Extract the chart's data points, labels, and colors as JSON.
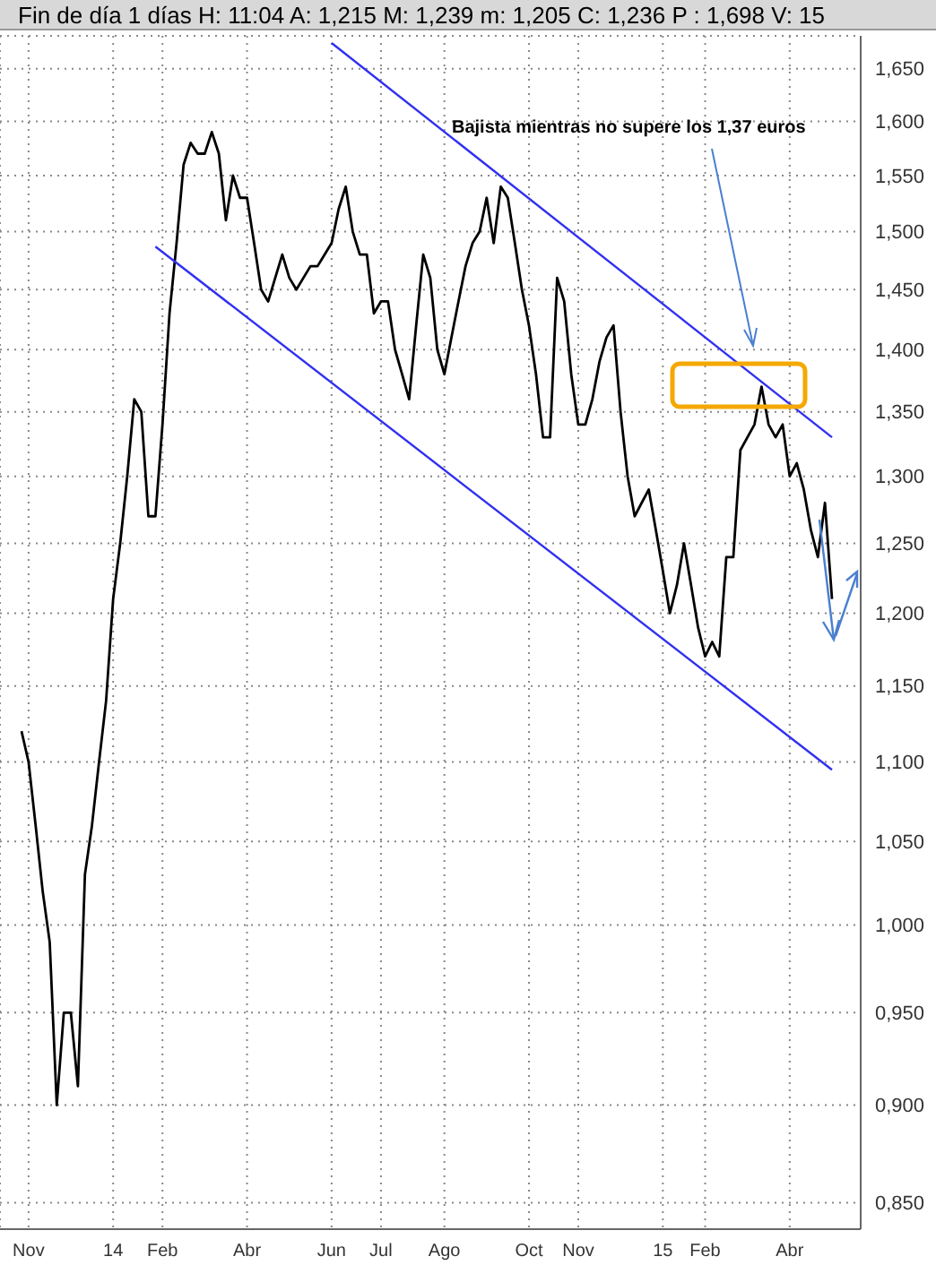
{
  "chart_data": {
    "type": "line",
    "title": "Fin de día 1 días H: 11:04 A: 1,215 M: 1,239 m: 1,205 C: 1,236 P : 1,698 V: 15",
    "categories": [
      null,
      "Nov",
      null,
      null,
      null,
      null,
      null,
      null,
      null,
      null,
      null,
      null,
      null,
      "14",
      null,
      null,
      null,
      null,
      null,
      null,
      "Feb",
      null,
      null,
      null,
      null,
      null,
      null,
      null,
      null,
      null,
      null,
      null,
      "Abr",
      null,
      null,
      null,
      null,
      null,
      null,
      null,
      null,
      null,
      null,
      null,
      "Jun",
      null,
      null,
      null,
      null,
      null,
      null,
      "Jul",
      null,
      null,
      null,
      null,
      null,
      null,
      null,
      null,
      "Ago",
      null,
      null,
      null,
      null,
      null,
      null,
      null,
      null,
      null,
      null,
      null,
      "Oct",
      null,
      null,
      null,
      null,
      null,
      null,
      "Nov",
      null,
      null,
      null,
      null,
      null,
      null,
      null,
      null,
      null,
      null,
      null,
      "15",
      null,
      null,
      null,
      null,
      null,
      "Feb",
      null,
      null,
      null,
      null,
      null,
      null,
      null,
      null,
      null,
      null,
      null,
      "Abr",
      null,
      null,
      null,
      null,
      null,
      null
    ],
    "series": [
      {
        "color": "#000000",
        "values": [
          1.12,
          1.1,
          1.06,
          1.02,
          0.99,
          0.9,
          0.95,
          0.95,
          0.91,
          1.03,
          1.06,
          1.1,
          1.14,
          1.21,
          1.25,
          1.3,
          1.36,
          1.35,
          1.27,
          1.27,
          1.34,
          1.43,
          1.49,
          1.56,
          1.58,
          1.57,
          1.57,
          1.59,
          1.57,
          1.51,
          1.55,
          1.53,
          1.53,
          1.49,
          1.45,
          1.44,
          1.46,
          1.48,
          1.46,
          1.45,
          1.46,
          1.47,
          1.47,
          1.48,
          1.49,
          1.52,
          1.54,
          1.5,
          1.48,
          1.48,
          1.43,
          1.44,
          1.44,
          1.4,
          1.38,
          1.36,
          1.42,
          1.48,
          1.46,
          1.4,
          1.38,
          1.41,
          1.44,
          1.47,
          1.49,
          1.5,
          1.53,
          1.49,
          1.54,
          1.53,
          1.49,
          1.45,
          1.42,
          1.38,
          1.33,
          1.33,
          1.46,
          1.44,
          1.38,
          1.34,
          1.34,
          1.36,
          1.39,
          1.41,
          1.42,
          1.35,
          1.3,
          1.27,
          1.28,
          1.29,
          1.26,
          1.23,
          1.2,
          1.22,
          1.25,
          1.22,
          1.19,
          1.17,
          1.18,
          1.17,
          1.24,
          1.24,
          1.32,
          1.33,
          1.34,
          1.37,
          1.34,
          1.33,
          1.34,
          1.3,
          1.31,
          1.29,
          1.26,
          1.24,
          1.28,
          1.21
        ]
      },
      {
        "color": "#3030f0",
        "values": [
          null,
          null,
          null,
          null,
          null,
          null,
          null,
          null,
          null,
          null,
          null,
          null,
          null,
          null,
          null,
          null,
          null,
          null,
          null,
          null,
          null,
          null,
          null,
          null,
          null,
          null,
          null,
          null,
          null,
          null,
          null,
          null,
          null,
          null,
          null,
          null,
          null,
          null,
          null,
          null,
          null,
          null,
          null,
          null,
          1.675,
          null,
          null,
          null,
          null,
          null,
          null,
          null,
          null,
          null,
          null,
          null,
          null,
          null,
          null,
          null,
          null,
          null,
          null,
          null,
          null,
          null,
          null,
          null,
          null,
          null,
          null,
          null,
          null,
          null,
          null,
          null,
          null,
          null,
          null,
          null,
          null,
          null,
          null,
          null,
          null,
          null,
          null,
          null,
          null,
          null,
          null,
          null,
          null,
          null,
          null,
          null,
          null,
          null,
          null,
          null,
          null,
          null,
          null,
          null,
          null,
          null,
          null,
          null,
          null,
          null,
          null,
          null,
          null,
          null,
          null,
          1.33
        ]
      },
      {
        "color": "#3030f0",
        "values": [
          null,
          null,
          null,
          null,
          null,
          null,
          null,
          null,
          null,
          null,
          null,
          null,
          null,
          null,
          null,
          null,
          null,
          null,
          null,
          1.487,
          null,
          null,
          null,
          null,
          null,
          null,
          null,
          null,
          null,
          null,
          null,
          null,
          null,
          null,
          null,
          null,
          null,
          null,
          null,
          null,
          null,
          null,
          null,
          null,
          null,
          null,
          null,
          null,
          null,
          null,
          null,
          null,
          null,
          null,
          null,
          null,
          null,
          null,
          null,
          null,
          null,
          null,
          null,
          null,
          null,
          null,
          null,
          null,
          null,
          null,
          null,
          null,
          null,
          null,
          null,
          null,
          null,
          null,
          null,
          null,
          null,
          null,
          null,
          null,
          null,
          null,
          null,
          null,
          null,
          null,
          null,
          null,
          null,
          null,
          null,
          null,
          null,
          null,
          null,
          null,
          null,
          null,
          null,
          null,
          null,
          null,
          null,
          null,
          null,
          null,
          null,
          null,
          null,
          null,
          null,
          1.095
        ]
      }
    ],
    "log": true,
    "grid": true,
    "ylim": [
      0.837,
      1.682
    ],
    "yticks": [
      {
        "value": 0.85,
        "label": "0,850"
      },
      {
        "value": 0.9,
        "label": "0,900"
      },
      {
        "value": 0.95,
        "label": "0,950"
      },
      {
        "value": 1.0,
        "label": "1,000"
      },
      {
        "value": 1.05,
        "label": "1,050"
      },
      {
        "value": 1.1,
        "label": "1,100"
      },
      {
        "value": 1.15,
        "label": "1,150"
      },
      {
        "value": 1.2,
        "label": "1,200"
      },
      {
        "value": 1.25,
        "label": "1,250"
      },
      {
        "value": 1.3,
        "label": "1,300"
      },
      {
        "value": 1.35,
        "label": "1,350"
      },
      {
        "value": 1.4,
        "label": "1,400"
      },
      {
        "value": 1.45,
        "label": "1,450"
      },
      {
        "value": 1.5,
        "label": "1,500"
      },
      {
        "value": 1.55,
        "label": "1,550"
      },
      {
        "value": 1.6,
        "label": "1,600"
      },
      {
        "value": 1.65,
        "label": "1,650"
      }
    ],
    "annotations": [
      "Bajista mientras no supere los 1,37 euros"
    ]
  }
}
